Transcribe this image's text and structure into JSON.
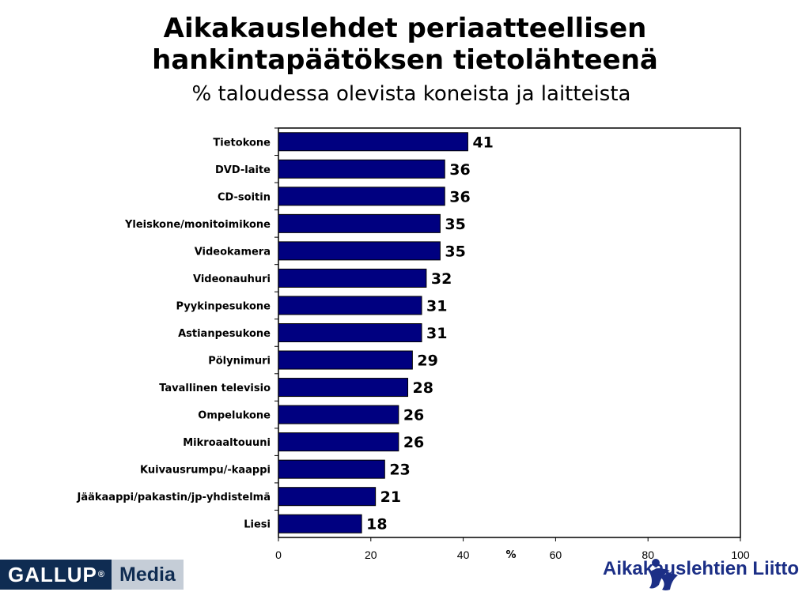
{
  "header": {
    "title_line1": "Aikakauslehdet periaatteellisen",
    "title_line2": "hankintapäätöksen tietolähteenä",
    "subtitle": "% taloudessa olevista koneista ja laitteista"
  },
  "chart_data": {
    "type": "bar",
    "orientation": "horizontal",
    "categories": [
      "Tietokone",
      "DVD-laite",
      "CD-soitin",
      "Yleiskone/monitoimikone",
      "Videokamera",
      "Videonauhuri",
      "Pyykinpesukone",
      "Astianpesukone",
      "Pölynimuri",
      "Tavallinen televisio",
      "Ompelukone",
      "Mikroaaltouuni",
      "Kuivausrumpu/-kaappi",
      "Jääkaappi/pakastin/jp-yhdistelmä",
      "Liesi"
    ],
    "values": [
      41,
      36,
      36,
      35,
      35,
      32,
      31,
      31,
      29,
      28,
      26,
      26,
      23,
      21,
      18
    ],
    "xlabel": "%",
    "xlim": [
      0,
      100
    ],
    "xticks": [
      0,
      20,
      40,
      60,
      80,
      100
    ],
    "bar_color": "#000080",
    "grid": false,
    "legend": "none"
  },
  "logos": {
    "gallup_name": "GALLUP",
    "gallup_mark": "®",
    "gallup_media": "Media",
    "aikakauslehtien_liitto": "Aikakauslehtien Liitto",
    "gallup_dark_color": "#0f2c52",
    "liitto_color": "#1c2f86"
  }
}
